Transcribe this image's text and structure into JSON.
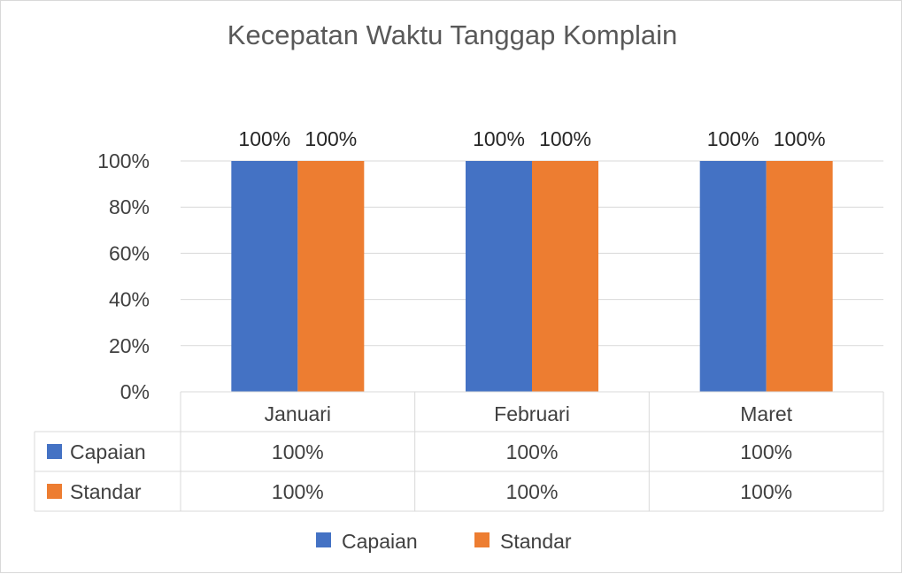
{
  "chart_data": {
    "type": "bar",
    "title": "Kecepatan Waktu Tanggap Komplain",
    "categories": [
      "Januari",
      "Februari",
      "Maret"
    ],
    "series": [
      {
        "name": "Capaian",
        "values": [
          100,
          100,
          100
        ],
        "color": "#4472C4"
      },
      {
        "name": "Standar",
        "values": [
          100,
          100,
          100
        ],
        "color": "#ED7D31"
      }
    ],
    "data_labels": [
      [
        "100%",
        "100%",
        "100%"
      ],
      [
        "100%",
        "100%",
        "100%"
      ]
    ],
    "y_ticks": [
      "0%",
      "20%",
      "40%",
      "60%",
      "80%",
      "100%"
    ],
    "ylim": [
      0,
      100
    ],
    "grid": true,
    "data_table": {
      "rows": [
        {
          "series": "Capaian",
          "cells": [
            "100%",
            "100%",
            "100%"
          ]
        },
        {
          "series": "Standar",
          "cells": [
            "100%",
            "100%",
            "100%"
          ]
        }
      ]
    },
    "legend": {
      "position": "bottom",
      "items": [
        "Capaian",
        "Standar"
      ]
    }
  }
}
